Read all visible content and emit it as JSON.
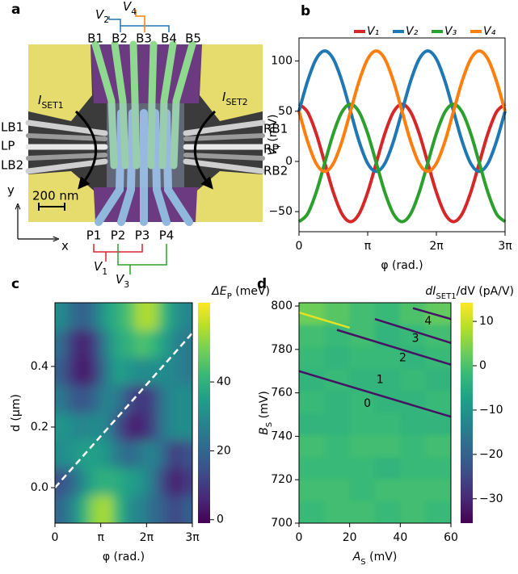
{
  "panel_labels": [
    "a",
    "b",
    "c",
    "d"
  ],
  "device": {
    "top_gates": [
      "B1",
      "B2",
      "B3",
      "B4",
      "B5"
    ],
    "bottom_gates": [
      "P1",
      "P2",
      "P3",
      "P4"
    ],
    "left_gates": [
      "LB1",
      "LP",
      "LB2"
    ],
    "right_gates": [
      "RB1",
      "RP",
      "RB2"
    ],
    "top_voltages": [
      [
        "V",
        "2"
      ],
      [
        "V",
        "4"
      ]
    ],
    "bottom_voltages": [
      [
        "V",
        "1"
      ],
      [
        "V",
        "3"
      ]
    ],
    "currents": [
      [
        "I",
        "SET1"
      ],
      [
        "I",
        "SET2"
      ]
    ],
    "scale_bar": "200 nm",
    "axes": [
      "y",
      "x"
    ]
  },
  "chart_data": [
    {
      "type": "line",
      "x": [
        0,
        0.3927,
        0.7854,
        1.1781,
        1.5708,
        1.9635,
        2.3562,
        2.7489,
        3.1416,
        3.5343,
        3.927,
        4.3197,
        4.7124,
        5.1051,
        5.4978,
        5.8905,
        6.2832,
        6.6759,
        7.0686,
        7.4613,
        7.854,
        8.2467,
        8.6394,
        9.0321,
        9.4248
      ],
      "series": [
        {
          "name": "V₁",
          "color": "#d62728",
          "values": [
            57,
            49.2,
            27.8,
            -1.5,
            -30.8,
            -52.2,
            -60,
            -52.2,
            -30.8,
            -1.5,
            27.8,
            49.2,
            57,
            49.2,
            27.8,
            -1.5,
            -30.8,
            -52.2,
            -60,
            -52.2,
            -30.8,
            -1.5,
            27.8,
            49.2,
            57
          ]
        },
        {
          "name": "V₂",
          "color": "#1f77b4",
          "values": [
            50,
            80,
            102,
            110,
            102,
            80,
            50,
            20,
            -2,
            -10,
            -2,
            20,
            50,
            80,
            102,
            110,
            102,
            80,
            50,
            20,
            -2,
            -10,
            -2,
            20,
            50
          ]
        },
        {
          "name": "V₃",
          "color": "#2ca02c",
          "values": [
            -60,
            -52.2,
            -30.8,
            -1.5,
            27.8,
            49.2,
            57,
            49.2,
            27.8,
            -1.5,
            -30.8,
            -52.2,
            -60,
            -52.2,
            -30.8,
            -1.5,
            27.8,
            49.2,
            57,
            49.2,
            27.8,
            -1.5,
            -30.8,
            -52.2,
            -60
          ]
        },
        {
          "name": "V₄",
          "color": "#ff7f0e",
          "values": [
            50,
            20,
            -2,
            -10,
            -2,
            20,
            50,
            80,
            102,
            110,
            102,
            80,
            50,
            20,
            -2,
            -10,
            -2,
            20,
            50,
            80,
            102,
            110,
            102,
            80,
            50
          ]
        }
      ],
      "xlim": [
        0,
        9.4248
      ],
      "xticks": [
        0,
        {
          "value": 3.1416,
          "label": "π"
        },
        {
          "value": 6.2832,
          "label": "2π"
        },
        {
          "value": 9.4248,
          "label": "3π"
        }
      ],
      "ylim": [
        -70,
        123
      ],
      "yticks": [
        {
          "value": -50,
          "label": "−50"
        },
        0,
        50,
        100
      ],
      "xlabel": "φ (rad.)",
      "ylabel": [
        "V",
        "i",
        " (mV)"
      ],
      "legend": "top"
    },
    {
      "type": "heatmap",
      "xlim": [
        0,
        9.4248
      ],
      "ylim": [
        -0.117,
        0.61
      ],
      "z": [
        [
          30,
          22,
          18,
          25,
          35,
          40,
          45,
          55,
          55,
          42,
          32,
          28
        ],
        [
          22,
          10,
          4,
          12,
          28,
          38,
          40,
          45,
          42,
          35,
          28,
          25
        ],
        [
          18,
          8,
          3,
          10,
          25,
          35,
          32,
          30,
          30,
          30,
          28,
          25
        ],
        [
          25,
          18,
          15,
          20,
          28,
          25,
          14,
          8,
          12,
          25,
          30,
          30
        ],
        [
          32,
          30,
          28,
          30,
          28,
          15,
          6,
          5,
          12,
          25,
          30,
          30
        ],
        [
          30,
          32,
          35,
          35,
          32,
          25,
          20,
          25,
          28,
          20,
          10,
          15
        ],
        [
          15,
          20,
          30,
          38,
          40,
          38,
          35,
          32,
          25,
          12,
          4,
          10
        ],
        [
          20,
          28,
          40,
          52,
          55,
          42,
          30,
          28,
          22,
          18,
          12,
          18
        ]
      ],
      "xticks": [
        0,
        {
          "value": 3.1416,
          "label": "π"
        },
        {
          "value": 6.2832,
          "label": "2π"
        },
        {
          "value": 9.4248,
          "label": "3π"
        }
      ],
      "yticks": [
        {
          "value": 0,
          "label": "0.0"
        },
        0.2,
        0.4
      ],
      "xlabel": "φ (rad.)",
      "ylabel": "d (μm)",
      "colorbar_label": [
        "ΔE",
        "P",
        " (meV)"
      ],
      "clim": [
        -1,
        63
      ],
      "cticks": [
        0,
        20,
        40
      ],
      "colormap": "viridis",
      "dashed_line": {
        "x": [
          0,
          9.4248
        ],
        "y": [
          0,
          0.51
        ]
      }
    },
    {
      "type": "heatmap",
      "xlim": [
        0,
        60
      ],
      "ylim": [
        700,
        801.5
      ],
      "z": [
        [
          3,
          1,
          -1,
          -2,
          0,
          2
        ],
        [
          -1,
          -2,
          -1,
          -3,
          -2,
          -1
        ],
        [
          -2,
          -3,
          -2,
          -2,
          -3,
          -2
        ],
        [
          -3,
          -2,
          -3,
          -3,
          -2,
          -3
        ],
        [
          -2,
          -3,
          -2,
          -3,
          -3,
          -2
        ],
        [
          -3,
          -3,
          -2,
          -2,
          -3,
          -3
        ],
        [
          -1,
          -2,
          -1,
          -1,
          -2,
          -1
        ],
        [
          -2,
          -2,
          -2,
          -3,
          -2,
          -2
        ],
        [
          -1,
          -1,
          -2,
          -1,
          -1,
          -1
        ],
        [
          -2,
          -1,
          -1,
          -2,
          -1,
          -2
        ]
      ],
      "xticks": [
        0,
        20,
        40,
        60
      ],
      "yticks": [
        700,
        720,
        740,
        760,
        780,
        800
      ],
      "xlabel": [
        "A",
        "S",
        " (mV)"
      ],
      "ylabel": [
        "B",
        "S",
        " (mV)"
      ],
      "colorbar_label": [
        "dI",
        "SET1",
        "/dV (pA/V)"
      ],
      "clim": [
        -35.5,
        14.2
      ],
      "cticks": [
        10,
        0,
        {
          "value": -10,
          "label": "−10"
        },
        {
          "value": -20,
          "label": "−20"
        },
        {
          "value": -30,
          "label": "−30"
        }
      ],
      "colormap": "viridis",
      "features": [
        {
          "x": [
            0,
            60
          ],
          "y": [
            770,
            749
          ],
          "value": -33
        },
        {
          "x": [
            15,
            60
          ],
          "y": [
            789,
            773
          ],
          "value": -33
        },
        {
          "x": [
            30,
            60
          ],
          "y": [
            794,
            783
          ],
          "value": -33
        },
        {
          "x": [
            45,
            60
          ],
          "y": [
            799,
            794
          ],
          "value": -33
        },
        {
          "x": [
            0,
            20
          ],
          "y": [
            797,
            790
          ],
          "value": 12
        }
      ],
      "annotations": [
        "0",
        "1",
        "2",
        "3",
        "4"
      ]
    }
  ]
}
